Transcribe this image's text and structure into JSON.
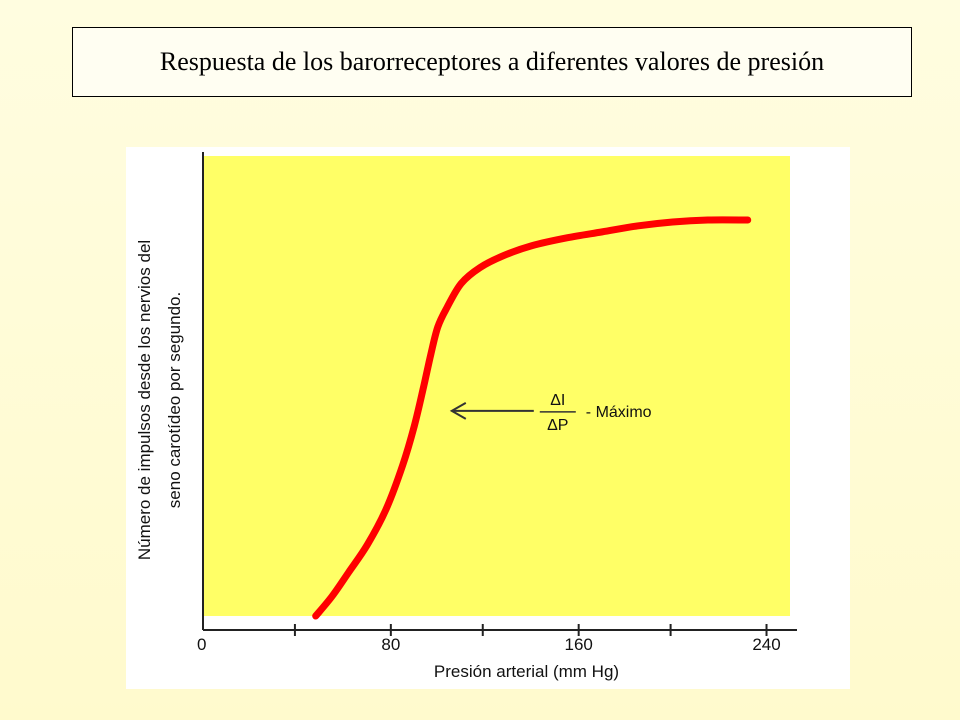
{
  "title": "Respuesta  de los barorreceptores a diferentes valores de presión",
  "chart_data": {
    "type": "line",
    "xlabel": "Presión arterial (mm Hg)",
    "ylabel_lines": [
      "Número de impulsos desde los nervios del",
      "seno carotídeo por segundo."
    ],
    "x_ticks": [
      0,
      80,
      160,
      240
    ],
    "xlim": [
      0,
      250
    ],
    "ylim": [
      0,
      100
    ],
    "grid": false,
    "series": [
      {
        "color": "#ff0000",
        "x": [
          48,
          55,
          62,
          70,
          78,
          85,
          90,
          94,
          97,
          100,
          104,
          110,
          118,
          128,
          140,
          155,
          170,
          185,
          200,
          215,
          232
        ],
        "y": [
          0,
          5,
          11,
          18,
          27,
          38,
          48,
          58,
          66,
          73,
          78,
          84,
          88,
          91,
          93.5,
          95.5,
          97,
          98.5,
          99.5,
          100,
          100
        ]
      }
    ],
    "annotation": {
      "numerator": "ΔI",
      "denominator": "ΔP",
      "text": "- Máximo",
      "x": 100,
      "y": 48
    }
  }
}
